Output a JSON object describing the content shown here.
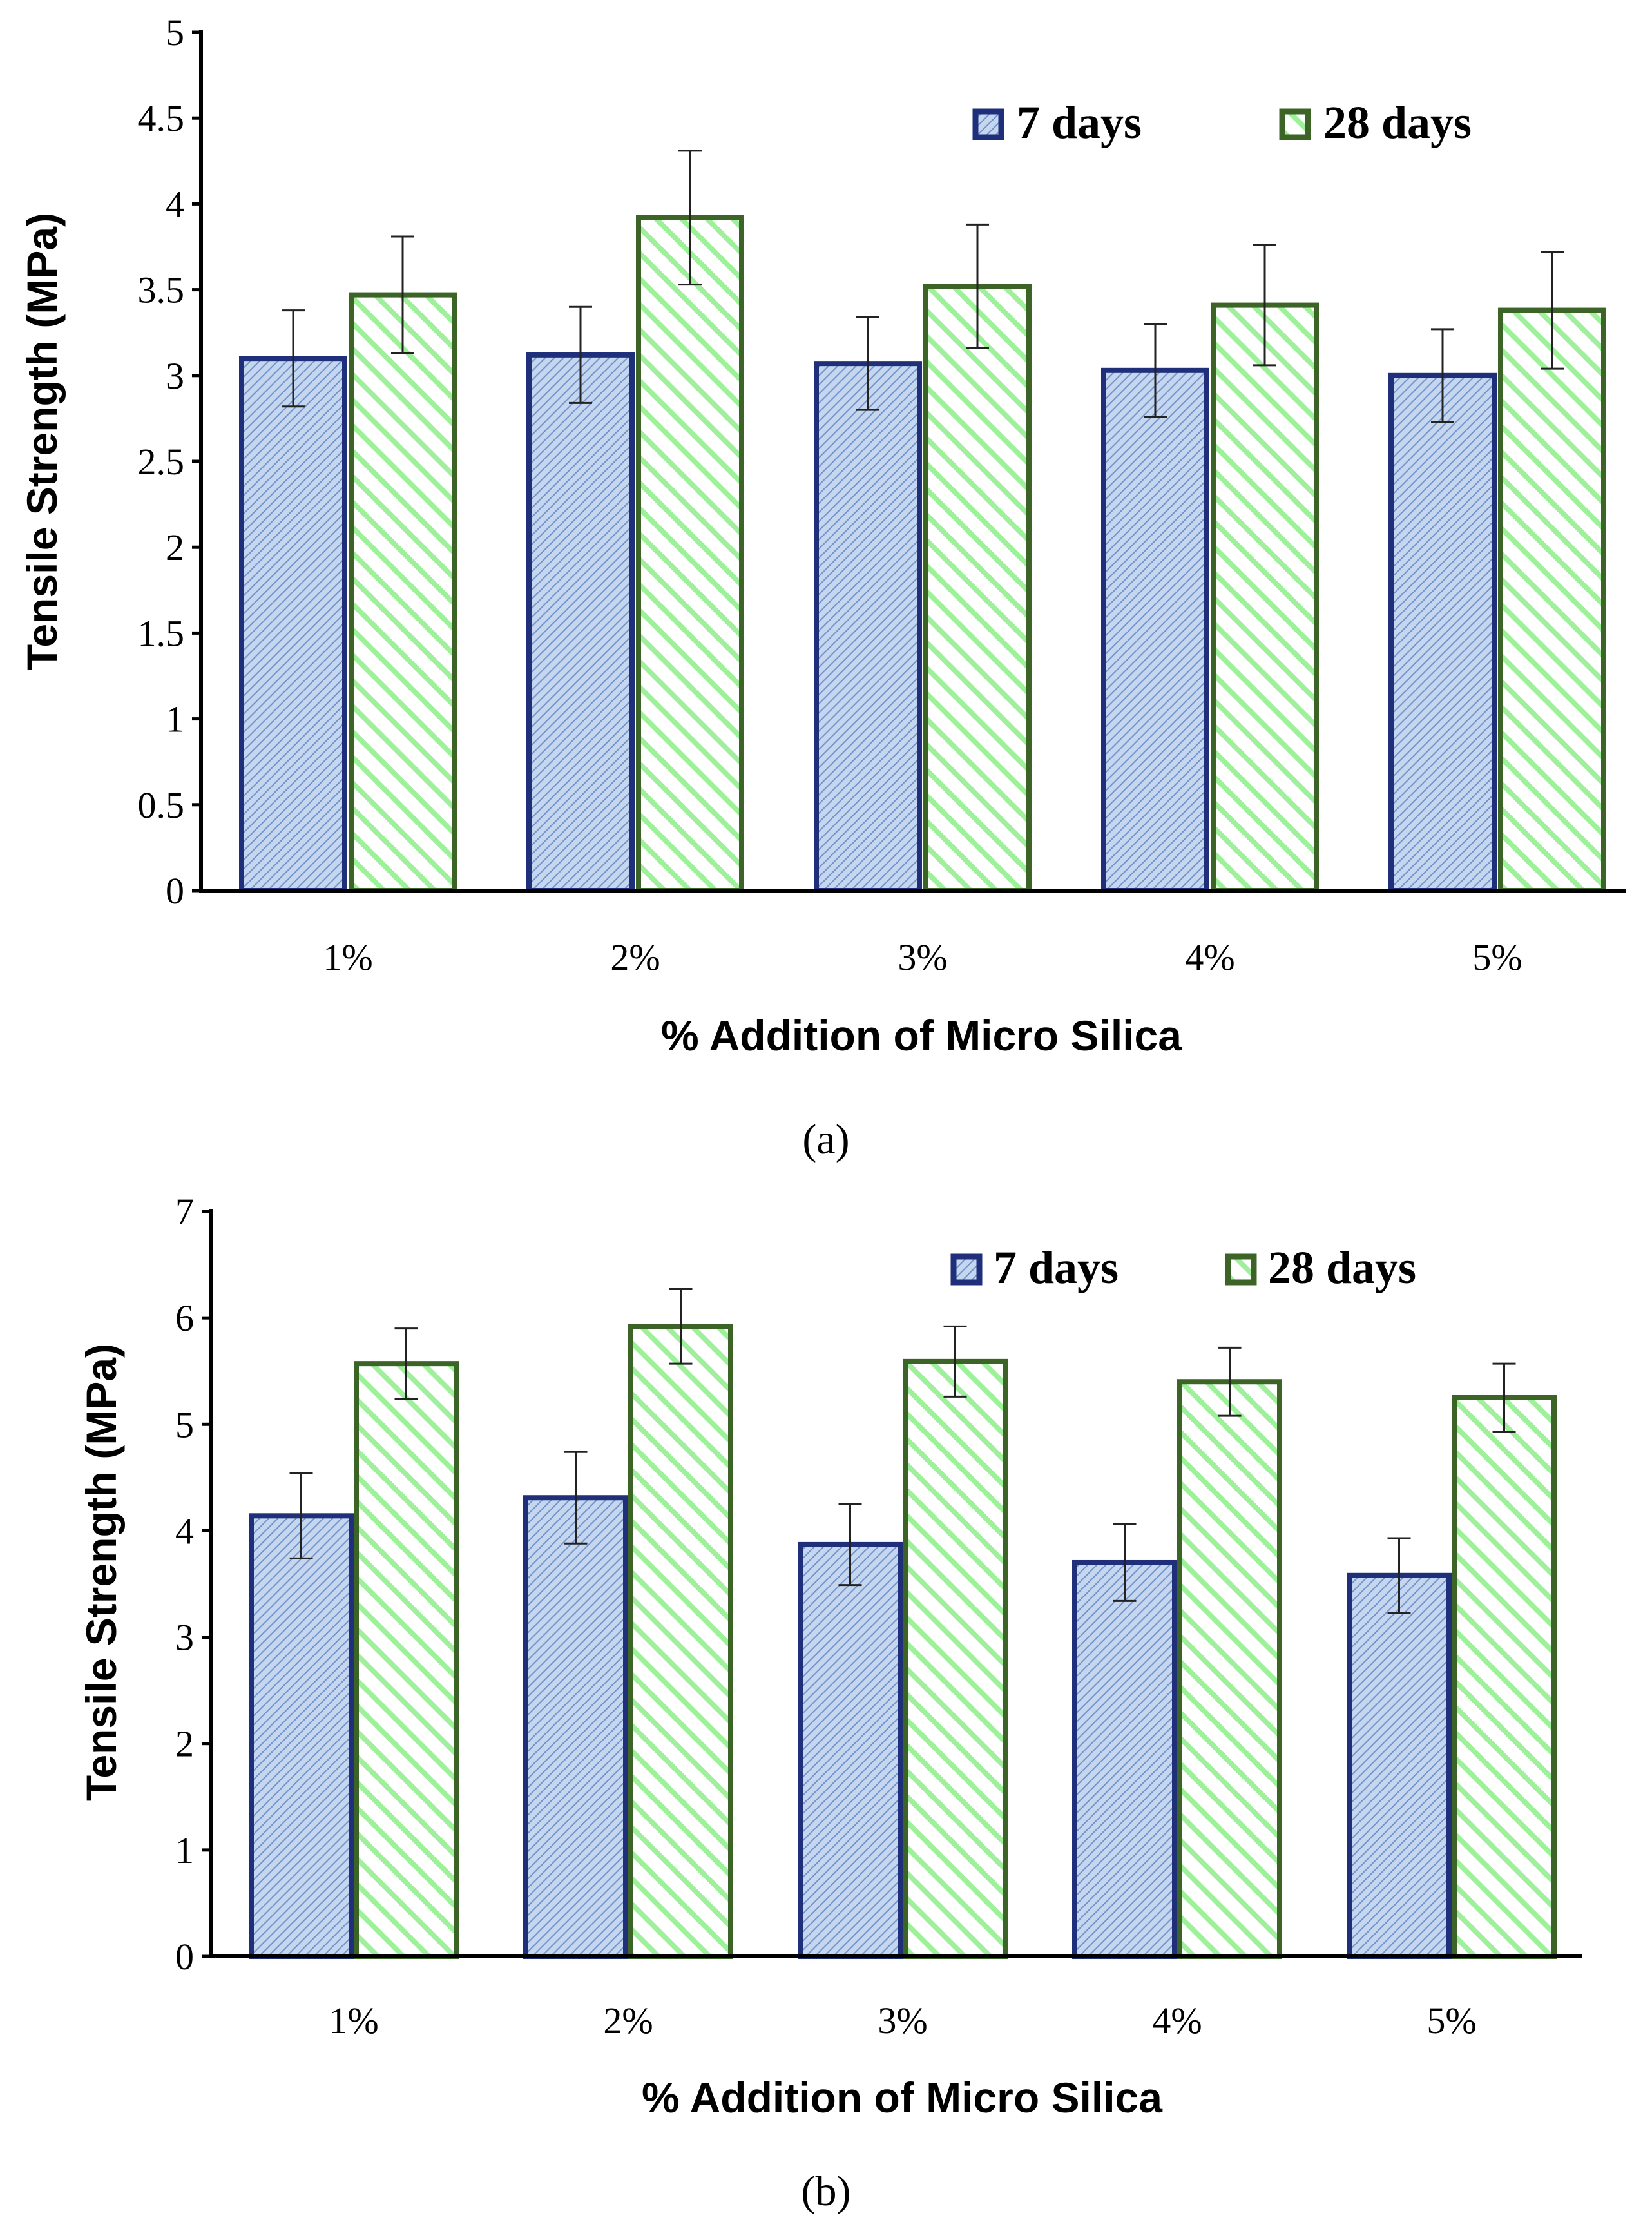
{
  "colors": {
    "seven_days_stroke": "#1f2f7a",
    "seven_days_fill": "#c6d6ee",
    "seven_days_hatch": "#6f93cc",
    "twenty_eight_stroke": "#3b6426",
    "twenty_eight_fill": "#ffffff",
    "twenty_eight_hatch": "#9ef09a",
    "axis": "#000000"
  },
  "chart_data": [
    {
      "type": "bar",
      "caption": "(a)",
      "title": "",
      "xlabel": "% Addition of Micro Silica",
      "ylabel": "Tensile Strength (MPa)",
      "categories": [
        "1%",
        "2%",
        "3%",
        "4%",
        "5%"
      ],
      "ylim": [
        0,
        5
      ],
      "yticks": [
        "0",
        "0.5",
        "1",
        "1.5",
        "2",
        "2.5",
        "3",
        "3.5",
        "4",
        "4.5",
        "5"
      ],
      "ytick_values": [
        0,
        0.5,
        1,
        1.5,
        2,
        2.5,
        3,
        3.5,
        4,
        4.5,
        5
      ],
      "legend_position": "top-right",
      "series": [
        {
          "name": "7 days",
          "values": [
            3.1,
            3.12,
            3.07,
            3.03,
            3.0
          ],
          "errors": [
            0.28,
            0.28,
            0.27,
            0.27,
            0.27
          ]
        },
        {
          "name": "28 days",
          "values": [
            3.47,
            3.92,
            3.52,
            3.41,
            3.38
          ],
          "errors": [
            0.34,
            0.39,
            0.36,
            0.35,
            0.34
          ]
        }
      ]
    },
    {
      "type": "bar",
      "caption": "(b)",
      "title": "",
      "xlabel": "% Addition of Micro Silica",
      "ylabel": "Tensile Strength (MPa)",
      "categories": [
        "1%",
        "2%",
        "3%",
        "4%",
        "5%"
      ],
      "ylim": [
        0,
        7
      ],
      "yticks": [
        "0",
        "1",
        "2",
        "3",
        "4",
        "5",
        "6",
        "7"
      ],
      "ytick_values": [
        0,
        1,
        2,
        3,
        4,
        5,
        6,
        7
      ],
      "legend_position": "top-right",
      "series": [
        {
          "name": "7 days",
          "values": [
            4.14,
            4.31,
            3.87,
            3.7,
            3.58
          ],
          "errors": [
            0.4,
            0.43,
            0.38,
            0.36,
            0.35
          ]
        },
        {
          "name": "28 days",
          "values": [
            5.57,
            5.92,
            5.59,
            5.4,
            5.25
          ],
          "errors": [
            0.33,
            0.35,
            0.33,
            0.32,
            0.32
          ]
        }
      ]
    }
  ]
}
